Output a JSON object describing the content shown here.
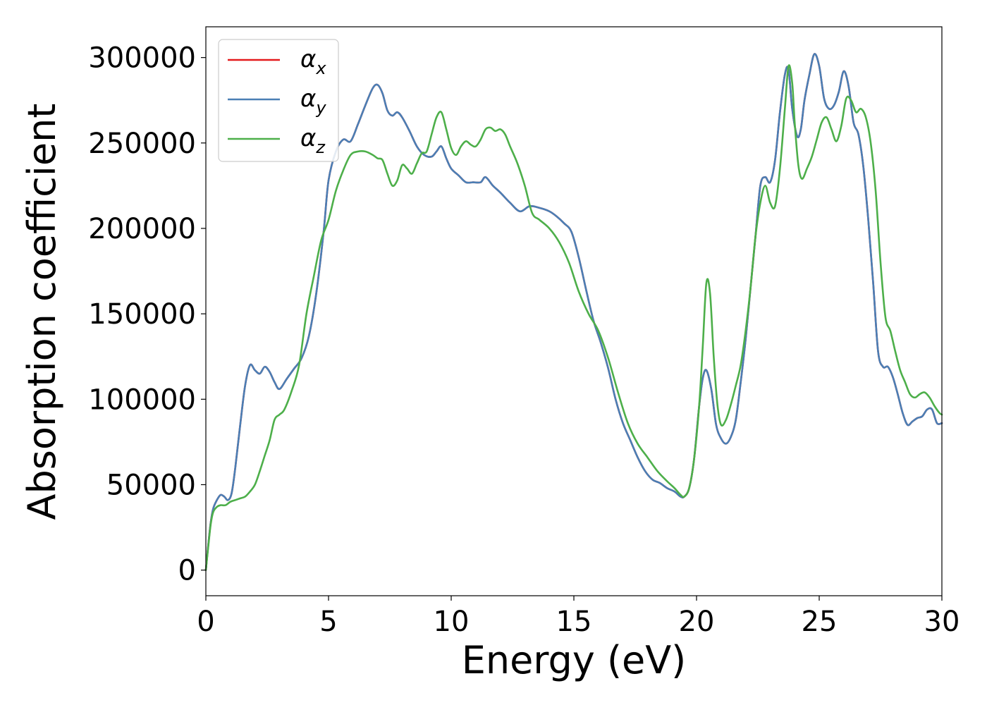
{
  "chart_data": {
    "type": "line",
    "xlabel": "Energy (eV)",
    "ylabel": "Absorption coefficient",
    "xlim": [
      0,
      30
    ],
    "ylim": [
      -15000,
      318000
    ],
    "xticks": [
      "0",
      "5",
      "10",
      "15",
      "20",
      "25",
      "30"
    ],
    "yticks": [
      "0",
      "50000",
      "100000",
      "150000",
      "200000",
      "250000",
      "300000"
    ],
    "grid": false,
    "legend_position": "top-left",
    "series": [
      {
        "name": "α",
        "subscript": "x",
        "color": "#e41a1c",
        "x": [
          0,
          0.1,
          0.2,
          0.3,
          0.45,
          0.6,
          0.75,
          0.9,
          1.05,
          1.2,
          1.4,
          1.6,
          1.8,
          2.0,
          2.2,
          2.4,
          2.6,
          2.8,
          3.0,
          3.3,
          3.6,
          3.9,
          4.2,
          4.5,
          4.8,
          5.0,
          5.3,
          5.6,
          5.9,
          6.2,
          6.5,
          6.8,
          7.0,
          7.2,
          7.4,
          7.6,
          7.8,
          8.0,
          8.3,
          8.6,
          8.9,
          9.2,
          9.4,
          9.6,
          9.8,
          10.0,
          10.3,
          10.6,
          10.9,
          11.2,
          11.4,
          11.7,
          12.0,
          12.4,
          12.8,
          13.2,
          13.6,
          14.0,
          14.3,
          14.6,
          14.9,
          15.2,
          15.5,
          15.8,
          16.1,
          16.4,
          16.7,
          17.0,
          17.3,
          17.6,
          17.9,
          18.2,
          18.5,
          18.8,
          19.1,
          19.35,
          19.5,
          19.7,
          19.9,
          20.1,
          20.25,
          20.4,
          20.6,
          20.8,
          21.0,
          21.2,
          21.4,
          21.6,
          21.8,
          22.0,
          22.2,
          22.4,
          22.6,
          22.8,
          23.0,
          23.2,
          23.4,
          23.6,
          23.75,
          23.9,
          24.1,
          24.25,
          24.4,
          24.6,
          24.8,
          25.0,
          25.2,
          25.4,
          25.6,
          25.8,
          26.0,
          26.2,
          26.4,
          26.6,
          26.8,
          27.0,
          27.2,
          27.4,
          27.6,
          27.8,
          28.0,
          28.2,
          28.4,
          28.6,
          28.8,
          29.0,
          29.2,
          29.4,
          29.6,
          29.8,
          30.0
        ],
        "y": [
          0,
          15000,
          28000,
          36000,
          41000,
          44000,
          43000,
          41000,
          45000,
          60000,
          85000,
          108000,
          120000,
          117000,
          115000,
          119000,
          116000,
          110000,
          106000,
          112000,
          118000,
          124000,
          137000,
          162000,
          198000,
          228000,
          245000,
          252000,
          251000,
          261000,
          272000,
          282000,
          284000,
          279000,
          269000,
          266000,
          268000,
          265000,
          257000,
          248000,
          243000,
          242000,
          245000,
          248000,
          241000,
          235000,
          231000,
          227000,
          227000,
          227000,
          230000,
          225000,
          221000,
          215000,
          210000,
          213000,
          212000,
          210000,
          207000,
          203000,
          198000,
          183000,
          164000,
          146000,
          133000,
          118000,
          100000,
          86000,
          76000,
          66000,
          58000,
          53000,
          51000,
          48000,
          46000,
          43000,
          43000,
          48000,
          65000,
          95000,
          112000,
          117000,
          106000,
          85000,
          77000,
          74000,
          78000,
          88000,
          110000,
          135000,
          165000,
          195000,
          225000,
          230000,
          227000,
          240000,
          268000,
          290000,
          293000,
          270000,
          254000,
          258000,
          275000,
          290000,
          302000,
          295000,
          276000,
          270000,
          272000,
          280000,
          292000,
          283000,
          262000,
          255000,
          236000,
          205000,
          168000,
          128000,
          119000,
          119000,
          113000,
          103000,
          92000,
          85000,
          87000,
          89000,
          90000,
          94000,
          94000,
          86000,
          86000
        ]
      },
      {
        "name": "α",
        "subscript": "y",
        "color": "#4a7fb5",
        "x": [
          0,
          0.1,
          0.2,
          0.3,
          0.45,
          0.6,
          0.75,
          0.9,
          1.05,
          1.2,
          1.4,
          1.6,
          1.8,
          2.0,
          2.2,
          2.4,
          2.6,
          2.8,
          3.0,
          3.3,
          3.6,
          3.9,
          4.2,
          4.5,
          4.8,
          5.0,
          5.3,
          5.6,
          5.9,
          6.2,
          6.5,
          6.8,
          7.0,
          7.2,
          7.4,
          7.6,
          7.8,
          8.0,
          8.3,
          8.6,
          8.9,
          9.2,
          9.4,
          9.6,
          9.8,
          10.0,
          10.3,
          10.6,
          10.9,
          11.2,
          11.4,
          11.7,
          12.0,
          12.4,
          12.8,
          13.2,
          13.6,
          14.0,
          14.3,
          14.6,
          14.9,
          15.2,
          15.5,
          15.8,
          16.1,
          16.4,
          16.7,
          17.0,
          17.3,
          17.6,
          17.9,
          18.2,
          18.5,
          18.8,
          19.1,
          19.35,
          19.5,
          19.7,
          19.9,
          20.1,
          20.25,
          20.4,
          20.6,
          20.8,
          21.0,
          21.2,
          21.4,
          21.6,
          21.8,
          22.0,
          22.2,
          22.4,
          22.6,
          22.8,
          23.0,
          23.2,
          23.4,
          23.6,
          23.75,
          23.9,
          24.1,
          24.25,
          24.4,
          24.6,
          24.8,
          25.0,
          25.2,
          25.4,
          25.6,
          25.8,
          26.0,
          26.2,
          26.4,
          26.6,
          26.8,
          27.0,
          27.2,
          27.4,
          27.6,
          27.8,
          28.0,
          28.2,
          28.4,
          28.6,
          28.8,
          29.0,
          29.2,
          29.4,
          29.6,
          29.8,
          30.0
        ],
        "y": [
          0,
          15000,
          28000,
          36000,
          41000,
          44000,
          43000,
          41000,
          45000,
          60000,
          85000,
          108000,
          120000,
          117000,
          115000,
          119000,
          116000,
          110000,
          106000,
          112000,
          118000,
          124000,
          137000,
          162000,
          198000,
          228000,
          245000,
          252000,
          251000,
          261000,
          272000,
          282000,
          284000,
          279000,
          269000,
          266000,
          268000,
          265000,
          257000,
          248000,
          243000,
          242000,
          245000,
          248000,
          241000,
          235000,
          231000,
          227000,
          227000,
          227000,
          230000,
          225000,
          221000,
          215000,
          210000,
          213000,
          212000,
          210000,
          207000,
          203000,
          198000,
          183000,
          164000,
          146000,
          133000,
          118000,
          100000,
          86000,
          76000,
          66000,
          58000,
          53000,
          51000,
          48000,
          46000,
          43000,
          43000,
          48000,
          65000,
          95000,
          112000,
          117000,
          106000,
          85000,
          77000,
          74000,
          78000,
          88000,
          110000,
          135000,
          165000,
          195000,
          225000,
          230000,
          227000,
          240000,
          268000,
          290000,
          293000,
          270000,
          254000,
          258000,
          275000,
          290000,
          302000,
          295000,
          276000,
          270000,
          272000,
          280000,
          292000,
          283000,
          262000,
          255000,
          236000,
          205000,
          168000,
          128000,
          119000,
          119000,
          113000,
          103000,
          92000,
          85000,
          87000,
          89000,
          90000,
          94000,
          94000,
          86000,
          86000
        ]
      },
      {
        "name": "α",
        "subscript": "z",
        "color": "#4daf4a",
        "x": [
          0,
          0.1,
          0.2,
          0.3,
          0.45,
          0.6,
          0.8,
          1.0,
          1.2,
          1.4,
          1.6,
          1.8,
          2.0,
          2.2,
          2.4,
          2.6,
          2.8,
          3.0,
          3.2,
          3.5,
          3.8,
          4.1,
          4.4,
          4.7,
          5.0,
          5.3,
          5.6,
          5.9,
          6.2,
          6.5,
          6.8,
          7.0,
          7.2,
          7.4,
          7.6,
          7.8,
          8.0,
          8.2,
          8.4,
          8.6,
          8.8,
          9.0,
          9.2,
          9.4,
          9.6,
          9.8,
          10.0,
          10.2,
          10.4,
          10.6,
          10.8,
          11.0,
          11.2,
          11.4,
          11.6,
          11.8,
          12.0,
          12.2,
          12.4,
          12.7,
          13.0,
          13.3,
          13.6,
          14.0,
          14.4,
          14.8,
          15.2,
          15.6,
          16.0,
          16.4,
          16.8,
          17.2,
          17.6,
          18.0,
          18.4,
          18.8,
          19.1,
          19.35,
          19.5,
          19.7,
          19.9,
          20.1,
          20.25,
          20.4,
          20.55,
          20.7,
          20.85,
          21.0,
          21.2,
          21.4,
          21.6,
          21.8,
          22.0,
          22.2,
          22.4,
          22.6,
          22.8,
          23.0,
          23.2,
          23.4,
          23.6,
          23.75,
          23.9,
          24.0,
          24.15,
          24.3,
          24.5,
          24.7,
          24.9,
          25.1,
          25.3,
          25.5,
          25.7,
          25.9,
          26.1,
          26.3,
          26.5,
          26.7,
          26.9,
          27.1,
          27.3,
          27.5,
          27.7,
          27.9,
          28.1,
          28.3,
          28.5,
          28.7,
          28.9,
          29.1,
          29.3,
          29.5,
          29.7,
          29.9,
          30.0
        ],
        "y": [
          0,
          14000,
          27000,
          34000,
          37000,
          38000,
          38000,
          40000,
          41000,
          42000,
          43000,
          46000,
          50000,
          58000,
          67000,
          76000,
          88000,
          91000,
          94000,
          105000,
          120000,
          150000,
          172000,
          193000,
          205000,
          222000,
          234000,
          243000,
          245000,
          245000,
          243000,
          241000,
          240000,
          232000,
          225000,
          228000,
          237000,
          235000,
          232000,
          238000,
          244000,
          245000,
          255000,
          265000,
          268000,
          258000,
          247000,
          243000,
          248000,
          251000,
          249000,
          248000,
          252000,
          258000,
          259000,
          257000,
          258000,
          255000,
          248000,
          238000,
          225000,
          209000,
          205000,
          200000,
          192000,
          180000,
          163000,
          150000,
          140000,
          124000,
          104000,
          86000,
          74000,
          66000,
          58000,
          52000,
          48000,
          44000,
          43000,
          48000,
          65000,
          95000,
          130000,
          168000,
          162000,
          125000,
          97000,
          85000,
          88000,
          97000,
          108000,
          120000,
          140000,
          165000,
          195000,
          215000,
          225000,
          215000,
          213000,
          235000,
          270000,
          295000,
          285000,
          262000,
          237000,
          229000,
          235000,
          242000,
          252000,
          262000,
          265000,
          258000,
          251000,
          260000,
          276000,
          275000,
          268000,
          270000,
          265000,
          250000,
          222000,
          180000,
          148000,
          140000,
          128000,
          117000,
          110000,
          103000,
          101000,
          103000,
          104000,
          101000,
          96000,
          92000,
          91000
        ]
      }
    ]
  }
}
